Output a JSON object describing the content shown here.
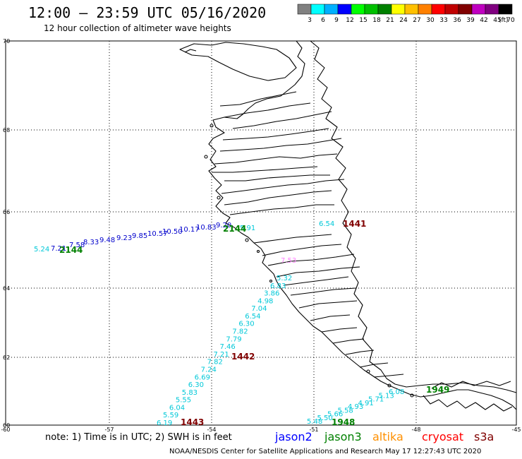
{
  "header": {
    "title": "12:00 – 23:59 UTC 05/16/2020",
    "subtitle": "12 hour collection of altimeter wave heights"
  },
  "colorbar": {
    "unit": "(ft)",
    "bins": [
      {
        "label": "3",
        "color": "#808080"
      },
      {
        "label": "6",
        "color": "#00ffff"
      },
      {
        "label": "9",
        "color": "#00b0ff"
      },
      {
        "label": "12",
        "color": "#0000ff"
      },
      {
        "label": "15",
        "color": "#00ff00"
      },
      {
        "label": "18",
        "color": "#00c000"
      },
      {
        "label": "21",
        "color": "#008000"
      },
      {
        "label": "24",
        "color": "#ffff00"
      },
      {
        "label": "27",
        "color": "#ffc000"
      },
      {
        "label": "30",
        "color": "#ff8000"
      },
      {
        "label": "33",
        "color": "#ff0000"
      },
      {
        "label": "36",
        "color": "#c00000"
      },
      {
        "label": "39",
        "color": "#800000"
      },
      {
        "label": "42",
        "color": "#c000c0"
      },
      {
        "label": "45",
        "color": "#800080"
      },
      {
        "label": "70",
        "color": "#000000"
      }
    ]
  },
  "map": {
    "lat_ticks": [
      "70",
      "68",
      "66",
      "64",
      "62",
      "60"
    ],
    "lon_ticks": [
      "-60",
      "-57",
      "-54",
      "-51",
      "-48",
      "-45"
    ]
  },
  "tracks": {
    "jason2": {
      "color": "#0000cc",
      "values": [
        "7.21",
        "7.58",
        "8.33",
        "9.48",
        "9.23",
        "9.85",
        "10.57",
        "10.50",
        "10.17",
        "10.83",
        "9.20"
      ]
    },
    "tealtop": {
      "color": "#00c8d8",
      "values": [
        "5.24",
        "6.54",
        "5.91"
      ]
    },
    "pink": {
      "color": "#ff80ff",
      "values": [
        "7.53"
      ]
    },
    "cyan_diag": {
      "color": "#00c8d8",
      "values": [
        "5.32",
        "6.83",
        "3.86",
        "4.98",
        "7.04",
        "6.54",
        "6.30",
        "7.82",
        "7.79",
        "7.46",
        "7.21",
        "7.82",
        "7.24",
        "6.69",
        "6.30",
        "5.83",
        "5.55",
        "6.04",
        "5.59",
        "6.19"
      ]
    },
    "cyan_bottom": {
      "color": "#00c8d8",
      "values": [
        "5.48",
        "5.50",
        "5.66",
        "5.58",
        "4.93",
        "4.91",
        "5.71",
        "5.13",
        "6.08"
      ]
    },
    "times": [
      {
        "text": "2144",
        "color": "#008000"
      },
      {
        "text": "2144",
        "color": "#008000"
      },
      {
        "text": "1441",
        "color": "#800000"
      },
      {
        "text": "1442",
        "color": "#800000"
      },
      {
        "text": "1443",
        "color": "#800000"
      },
      {
        "text": "1948",
        "color": "#008000"
      },
      {
        "text": "1949",
        "color": "#008000"
      }
    ]
  },
  "legend": {
    "note": "note:  1) Time is in UTC;  2) SWH is in feet",
    "satellites": [
      {
        "name": "jason2",
        "color": "#0000ff"
      },
      {
        "name": "jason3",
        "color": "#008000"
      },
      {
        "name": "altika",
        "color": "#ff9000"
      },
      {
        "name": "cryosat",
        "color": "#ff0000"
      },
      {
        "name": "s3a",
        "color": "#800000"
      }
    ]
  },
  "footer": "NOAA/NESDIS Center for Satellite Applications and Research    May 17 12:27:43 UTC 2020"
}
